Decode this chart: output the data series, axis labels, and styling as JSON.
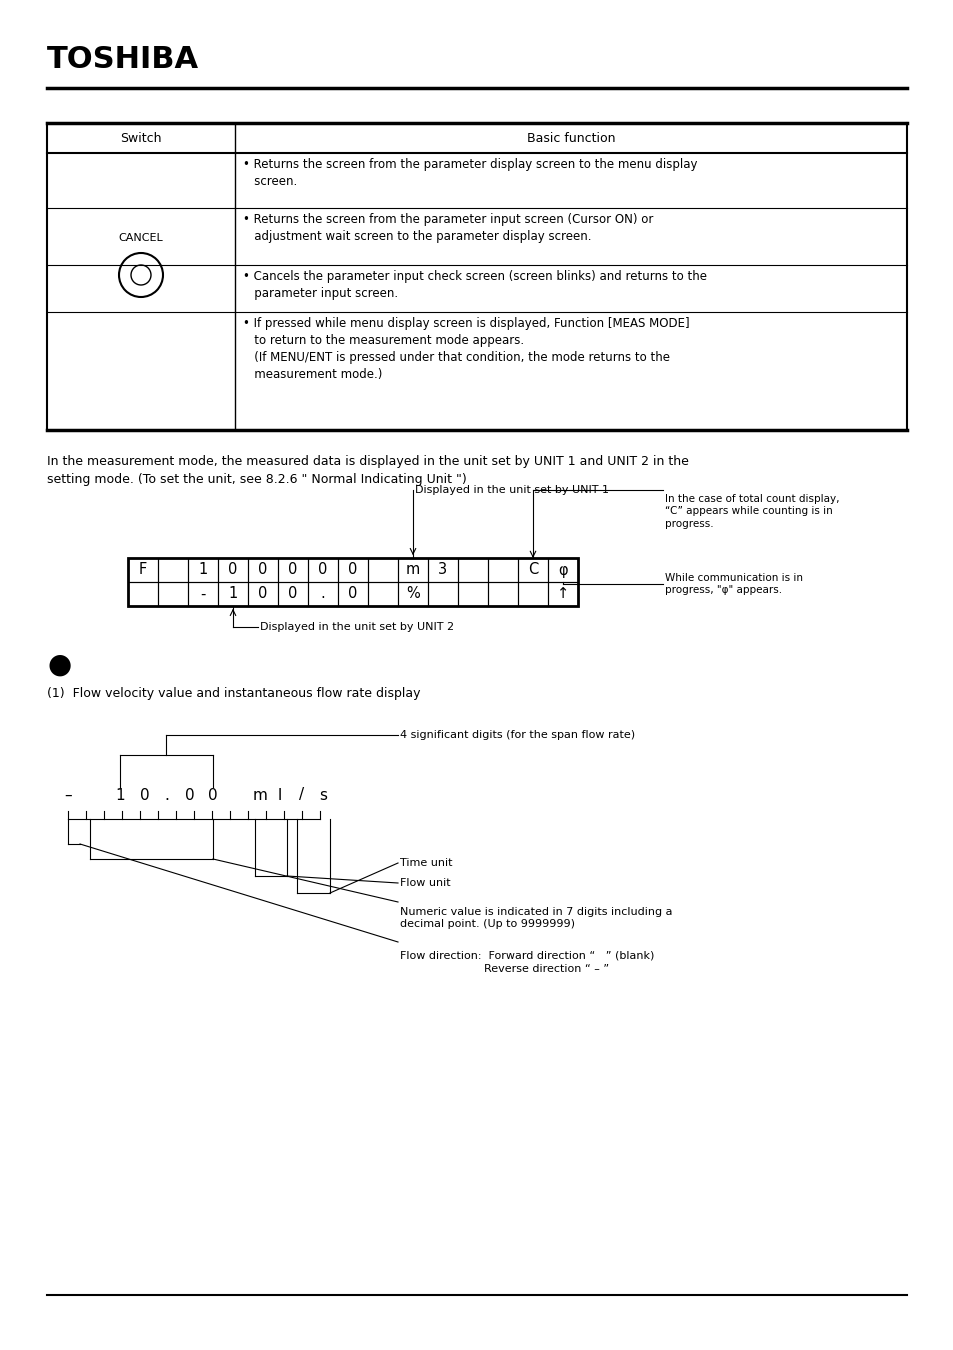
{
  "bg_color": "#ffffff",
  "text_color": "#000000",
  "title_text": "TOSHIBA",
  "table_header": [
    "Switch",
    "Basic function"
  ],
  "cancel_label": "CANCEL",
  "intro_text": "In the measurement mode, the measured data is displayed in the unit set by UNIT 1 and UNIT 2 in the\nsetting mode. (To set the unit, see 8.2.6 \" Normal Indicating Unit \")",
  "display_row1": [
    "F",
    "",
    "1",
    "0",
    "0",
    "0",
    "0",
    "0",
    "",
    "m",
    "3",
    "",
    "",
    "C",
    "φ"
  ],
  "display_row2": [
    "",
    "",
    "-",
    "1",
    "0",
    "0",
    ".",
    "0",
    "",
    "%",
    "",
    "",
    "",
    "",
    "↑"
  ],
  "annot_unit1": "Displayed in the unit set by UNIT 1",
  "annot_unit2": "Displayed in the unit set by UNIT 2",
  "annot_total": "In the case of total count display,\n“C” appears while counting is in\nprogress.",
  "annot_comm": "While communication is in\nprogress, \"φ\" appears.",
  "bullet_section": "●",
  "sub1_title": "(1)  Flow velocity value and instantaneous flow rate display",
  "annot_4sig": "4 significant digits (for the span flow rate)",
  "annot_time": "Time unit",
  "annot_flow": "Flow unit",
  "annot_numeric": "Numeric value is indicated in 7 digits including a\ndecimal point. (Up to 9999999)",
  "annot_direction": "Flow direction:  Forward direction “   ” (blank)\n                        Reverse direction “ – ”",
  "row_texts": [
    "• Returns the screen from the parameter display screen to the menu display\n   screen.",
    "• Returns the screen from the parameter input screen (Cursor ON) or\n   adjustment wait screen to the parameter display screen.",
    "• Cancels the parameter input check screen (screen blinks) and returns to the\n   parameter input screen.",
    "• If pressed while menu display screen is displayed, Function [MEAS MODE]\n   to return to the measurement mode appears.\n   (If MENU/ENT is pressed under that condition, the mode returns to the\n   measurement mode.)"
  ]
}
